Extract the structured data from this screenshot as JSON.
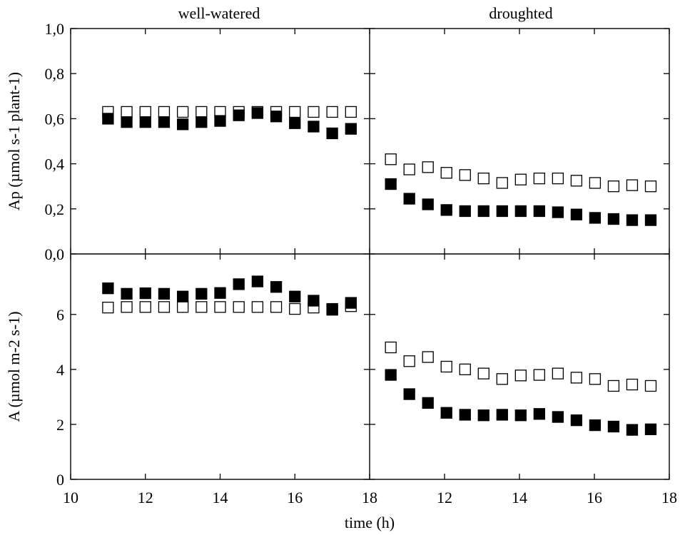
{
  "panel_titles": {
    "left": "well-watered",
    "right": "droughted"
  },
  "xlabel": "time (h)",
  "ylabel_top": "Ap (µmol s-1 plant-1)",
  "ylabel_bottom": "A (µmol m-2 s-1)",
  "x_ticks_left": [
    "10",
    "12",
    "14",
    "16",
    "18"
  ],
  "x_ticks_right": [
    "12",
    "14",
    "16",
    "18"
  ],
  "y_ticks_top": [
    "0,0",
    "0,2",
    "0,4",
    "0,6",
    "0,8",
    "1,0"
  ],
  "y_ticks_bottom": [
    "0",
    "2",
    "4",
    "6"
  ],
  "colors": {
    "filled": "#000000",
    "open_fill": "#ffffff",
    "stroke": "#000000"
  },
  "chart_data": [
    {
      "type": "scatter",
      "panel": "well-watered, top",
      "xlim": [
        10,
        18
      ],
      "ylim": [
        0,
        1.0
      ],
      "grid": false,
      "series": [
        {
          "marker": "open-square",
          "x": [
            11,
            11.5,
            12,
            12.5,
            13,
            13.5,
            14,
            14.5,
            15,
            15.5,
            16,
            16.5,
            17,
            17.5
          ],
          "y": [
            0.63,
            0.63,
            0.63,
            0.63,
            0.63,
            0.63,
            0.63,
            0.63,
            0.63,
            0.63,
            0.63,
            0.63,
            0.63,
            0.63
          ]
        },
        {
          "marker": "filled-square",
          "x": [
            11,
            11.5,
            12,
            12.5,
            13,
            13.5,
            14,
            14.5,
            15,
            15.5,
            16,
            16.5,
            17,
            17.5
          ],
          "y": [
            0.6,
            0.585,
            0.585,
            0.585,
            0.575,
            0.585,
            0.59,
            0.615,
            0.625,
            0.61,
            0.58,
            0.565,
            0.535,
            0.555
          ]
        }
      ]
    },
    {
      "type": "scatter",
      "panel": "droughted, top",
      "xlim": [
        10,
        18
      ],
      "ylim": [
        0,
        1.0
      ],
      "grid": false,
      "series": [
        {
          "marker": "open-square",
          "x": [
            10.5,
            11,
            11.5,
            12,
            12.5,
            13,
            13.5,
            14,
            14.5,
            15,
            15.5,
            16,
            16.5,
            17,
            17.5
          ],
          "y": [
            0.42,
            0.375,
            0.385,
            0.36,
            0.35,
            0.335,
            0.315,
            0.33,
            0.335,
            0.335,
            0.325,
            0.315,
            0.3,
            0.305,
            0.3
          ]
        },
        {
          "marker": "filled-square",
          "x": [
            10.5,
            11,
            11.5,
            12,
            12.5,
            13,
            13.5,
            14,
            14.5,
            15,
            15.5,
            16,
            16.5,
            17,
            17.5
          ],
          "y": [
            0.31,
            0.245,
            0.22,
            0.195,
            0.19,
            0.19,
            0.19,
            0.19,
            0.19,
            0.185,
            0.175,
            0.16,
            0.155,
            0.15,
            0.15
          ]
        }
      ]
    },
    {
      "type": "scatter",
      "panel": "well-watered, bottom",
      "xlim": [
        10,
        18
      ],
      "ylim": [
        0,
        8.2
      ],
      "grid": false,
      "series": [
        {
          "marker": "open-square",
          "x": [
            11,
            11.5,
            12,
            12.5,
            13,
            13.5,
            14,
            14.5,
            15,
            15.5,
            16,
            16.5,
            17,
            17.5
          ],
          "y": [
            6.25,
            6.27,
            6.27,
            6.27,
            6.27,
            6.27,
            6.27,
            6.27,
            6.27,
            6.27,
            6.2,
            6.25,
            6.2,
            6.3
          ]
        },
        {
          "marker": "filled-square",
          "x": [
            11,
            11.5,
            12,
            12.5,
            13,
            13.5,
            14,
            14.5,
            15,
            15.5,
            16,
            16.5,
            17,
            17.5
          ],
          "y": [
            6.95,
            6.75,
            6.77,
            6.75,
            6.65,
            6.75,
            6.78,
            7.1,
            7.2,
            7.0,
            6.65,
            6.5,
            6.17,
            6.42
          ]
        }
      ]
    },
    {
      "type": "scatter",
      "panel": "droughted, bottom",
      "xlim": [
        10,
        18
      ],
      "ylim": [
        0,
        8.2
      ],
      "grid": false,
      "series": [
        {
          "marker": "open-square",
          "x": [
            10.5,
            11,
            11.5,
            12,
            12.5,
            13,
            13.5,
            14,
            14.5,
            15,
            15.5,
            16,
            16.5,
            17,
            17.5
          ],
          "y": [
            4.8,
            4.3,
            4.45,
            4.1,
            4.0,
            3.85,
            3.65,
            3.78,
            3.8,
            3.85,
            3.7,
            3.65,
            3.4,
            3.45,
            3.4
          ]
        },
        {
          "marker": "filled-square",
          "x": [
            10.5,
            11,
            11.5,
            12,
            12.5,
            13,
            13.5,
            14,
            14.5,
            15,
            15.5,
            16,
            16.5,
            17,
            17.5
          ],
          "y": [
            3.8,
            3.1,
            2.78,
            2.42,
            2.35,
            2.33,
            2.35,
            2.33,
            2.38,
            2.27,
            2.15,
            1.97,
            1.92,
            1.8,
            1.82
          ]
        }
      ]
    }
  ]
}
